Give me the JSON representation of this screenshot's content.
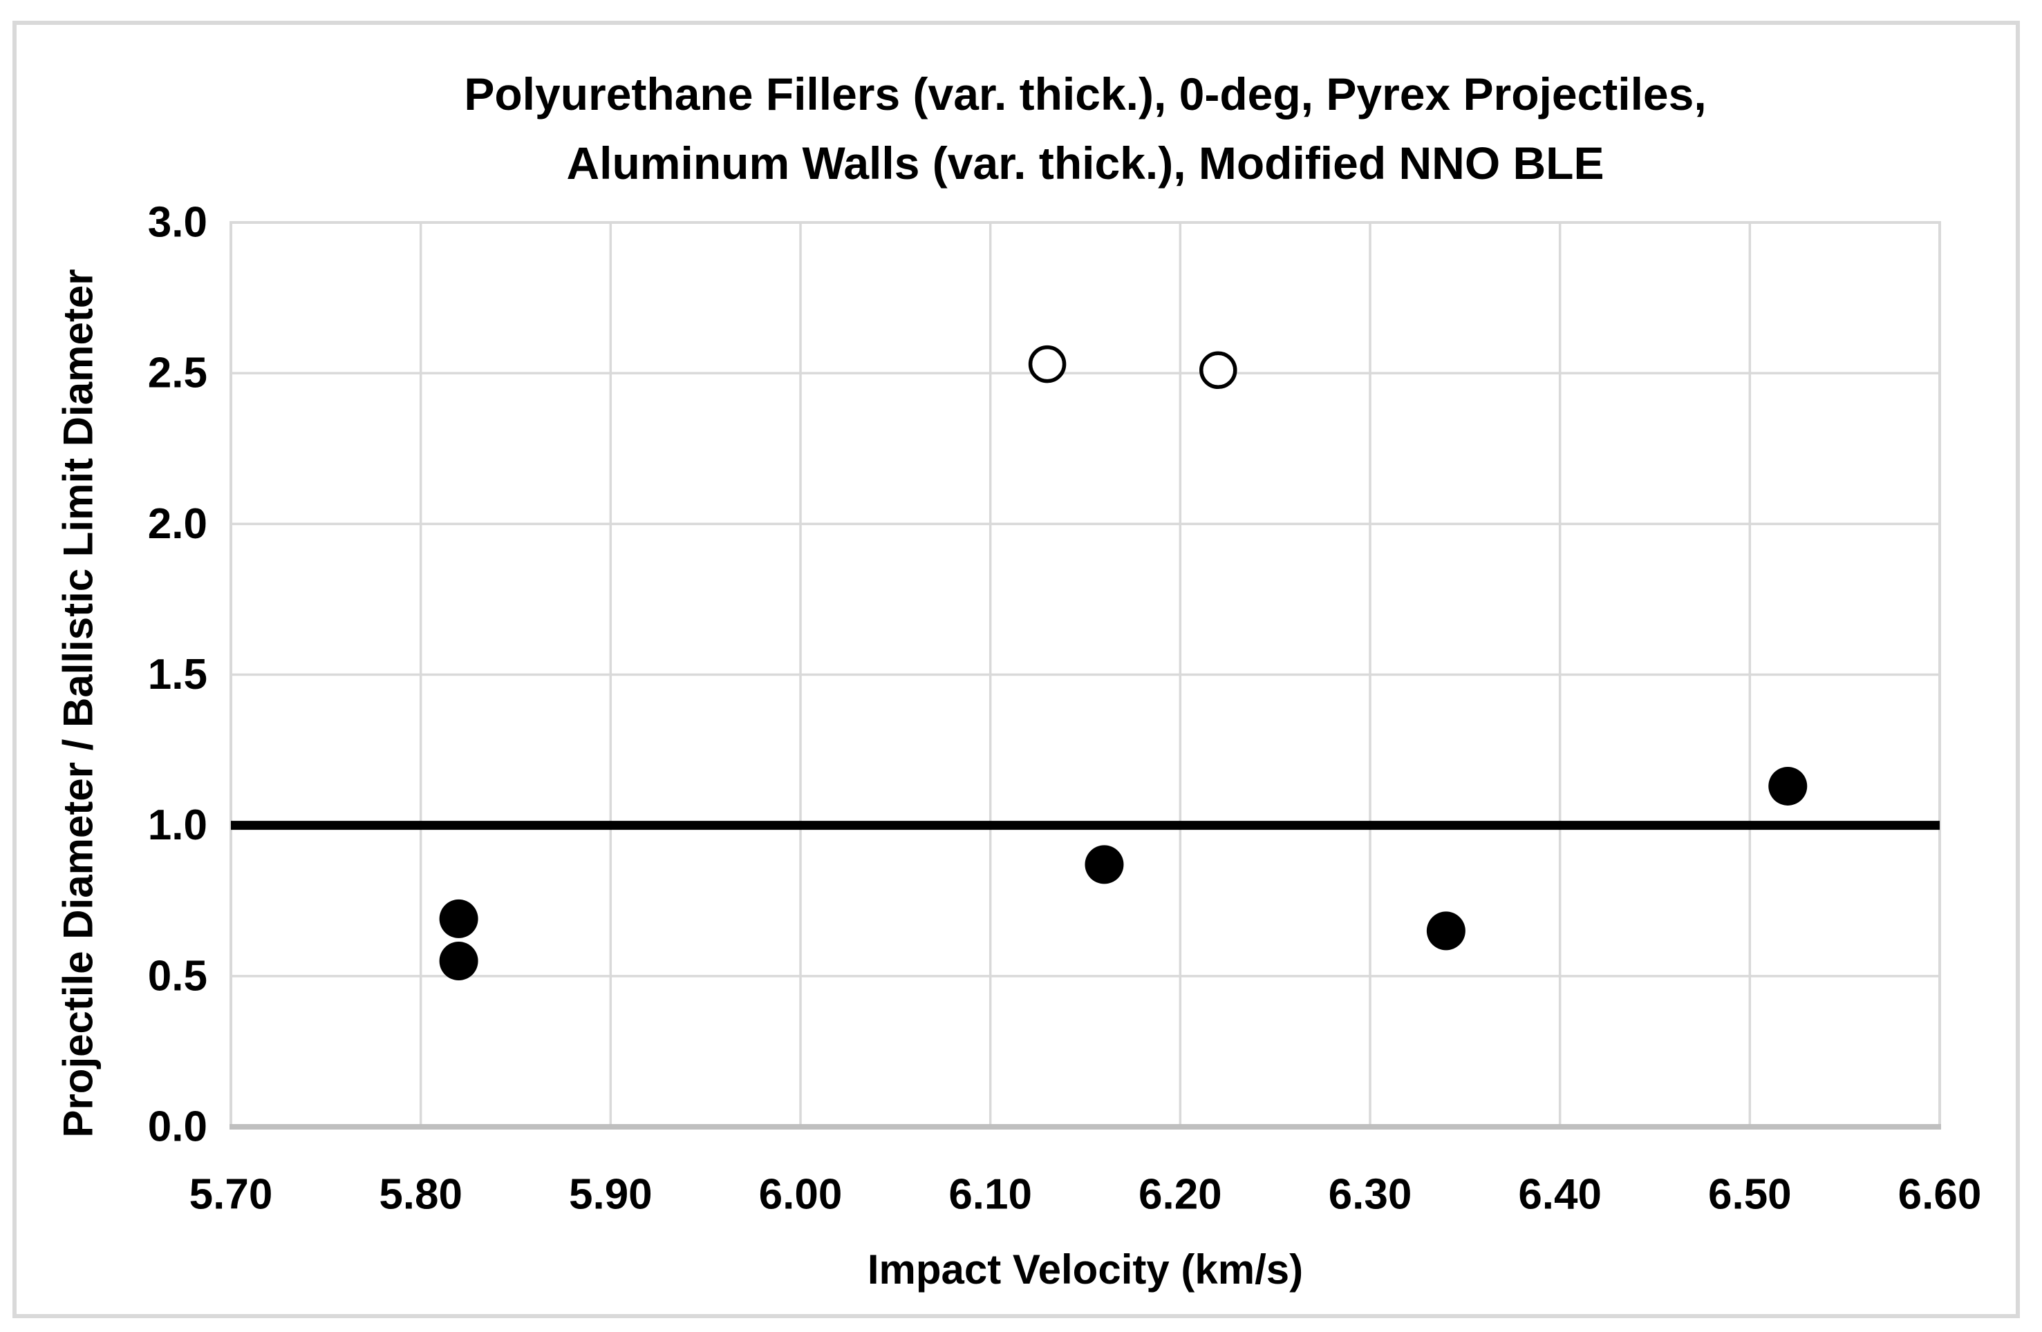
{
  "chart_data": {
    "type": "scatter",
    "title_lines": [
      "Polyurethane Fillers (var. thick.), 0-deg, Pyrex Projectiles,",
      "Aluminum Walls (var. thick.), Modified NNO BLE"
    ],
    "xlabel": "Impact Velocity (km/s)",
    "ylabel": "Projectile Diameter / Ballistic Limit Diameter",
    "xlim": [
      5.7,
      6.6
    ],
    "ylim": [
      0.0,
      3.0
    ],
    "x_ticks": [
      "5.70",
      "5.80",
      "5.90",
      "6.00",
      "6.10",
      "6.20",
      "6.30",
      "6.40",
      "6.50",
      "6.60"
    ],
    "y_ticks": [
      "0.0",
      "0.5",
      "1.0",
      "1.5",
      "2.0",
      "2.5",
      "3.0"
    ],
    "grid": true,
    "legend": false,
    "reference_line_y": 1.0,
    "series": [
      {
        "name": "filled_markers",
        "marker": "filled-circle",
        "points": [
          [
            5.82,
            0.69
          ],
          [
            5.82,
            0.55
          ],
          [
            6.16,
            0.87
          ],
          [
            6.34,
            0.65
          ],
          [
            6.52,
            1.13
          ]
        ]
      },
      {
        "name": "open_markers",
        "marker": "open-circle",
        "points": [
          [
            6.13,
            2.53
          ],
          [
            6.22,
            2.51
          ]
        ]
      }
    ]
  },
  "colors": {
    "background": "#ffffff",
    "text": "#000000",
    "gridline": "#d9d9d9",
    "plot_border": "#d9d9d9",
    "axis_line": "#bfbfbf",
    "outer_frame": "#d9d9d9",
    "reference_line": "#000000",
    "marker_fill": "#000000",
    "open_marker_fill": "#ffffff"
  }
}
